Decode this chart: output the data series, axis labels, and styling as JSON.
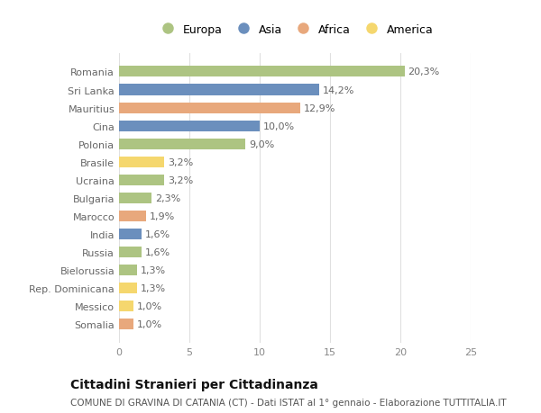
{
  "categories": [
    "Romania",
    "Sri Lanka",
    "Mauritius",
    "Cina",
    "Polonia",
    "Brasile",
    "Ucraina",
    "Bulgaria",
    "Marocco",
    "India",
    "Russia",
    "Bielorussia",
    "Rep. Dominicana",
    "Messico",
    "Somalia"
  ],
  "values": [
    20.3,
    14.2,
    12.9,
    10.0,
    9.0,
    3.2,
    3.2,
    2.3,
    1.9,
    1.6,
    1.6,
    1.3,
    1.3,
    1.0,
    1.0
  ],
  "labels": [
    "20,3%",
    "14,2%",
    "12,9%",
    "10,0%",
    "9,0%",
    "3,2%",
    "3,2%",
    "2,3%",
    "1,9%",
    "1,6%",
    "1,6%",
    "1,3%",
    "1,3%",
    "1,0%",
    "1,0%"
  ],
  "continents": [
    "Europa",
    "Asia",
    "Africa",
    "Asia",
    "Europa",
    "America",
    "Europa",
    "Europa",
    "Africa",
    "Asia",
    "Europa",
    "Europa",
    "America",
    "America",
    "Africa"
  ],
  "continent_colors": {
    "Europa": "#adc482",
    "Asia": "#6b8fbd",
    "Africa": "#e8a87c",
    "America": "#f5d76e"
  },
  "legend_order": [
    "Europa",
    "Asia",
    "Africa",
    "America"
  ],
  "title": "Cittadini Stranieri per Cittadinanza",
  "subtitle": "COMUNE DI GRAVINA DI CATANIA (CT) - Dati ISTAT al 1° gennaio - Elaborazione TUTTITALIA.IT",
  "xlim": [
    0,
    25
  ],
  "xticks": [
    0,
    5,
    10,
    15,
    20,
    25
  ],
  "bg_color": "#ffffff",
  "grid_color": "#e0e0e0",
  "bar_height": 0.6,
  "label_fontsize": 8,
  "tick_fontsize": 8,
  "title_fontsize": 10,
  "subtitle_fontsize": 7.5
}
